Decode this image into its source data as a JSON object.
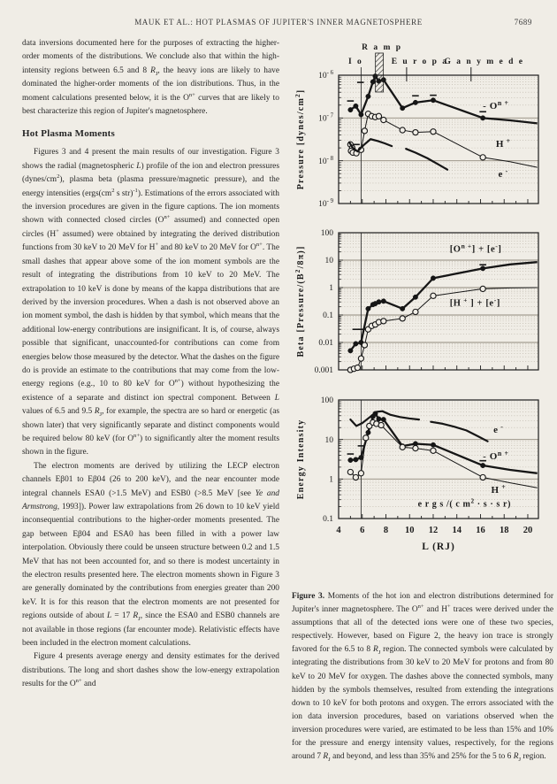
{
  "header": {
    "title": "MAUK ET AL.: HOT PLASMAS OF JUPITER'S INNER MAGNETOSPHERE",
    "page_number": "7689"
  },
  "article": {
    "para_continuation": "data inversions documented here for the purposes of extracting the higher-order moments of the distributions. We conclude also that within the high-intensity regions between 6.5 and 8 //R//_{J}, the heavy ions are likely to have dominated the higher-order moments of the ion distributions. Thus, in the moment calculations presented below, it is the O^{n+} curves that are likely to best characterize this region of Jupiter's magnetosphere.",
    "section_heading": "Hot Plasma Moments",
    "para_moments": "Figures 3 and 4 present the main results of our investigation. Figure 3 shows the radial (magnetospheric //L//) profile of the ion and electron pressures (dynes/cm^{2}), plasma beta (plasma pressure/magnetic pressure), and the energy intensities (ergs(cm^{2} s str)^{-1}). Estimations of the errors associated with the inversion procedures are given in the figure captions. The ion moments shown with connected closed circles (O^{n+} assumed) and connected open circles (H^{+} assumed) were obtained by integrating the derived distribution functions from 30 keV to 20 MeV for H^{+} and 80 keV to 20 MeV for O^{n+}. The small dashes that appear above some of the ion moment symbols are the result of integrating the distributions from 10 keV to 20 MeV.  The extrapolation to 10 keV is done by means of the kappa distributions that are derived by the inversion procedures. When a dash is not observed above an ion moment symbol, the dash is hidden by that symbol, which means that the additional low-energy contributions are insignificant. It is, of course, always possible that significant, unaccounted-for contributions can come from energies below those measured by the detector. What the dashes on the figure do is provide an estimate to the contributions that may come from the low-energy regions (e.g., 10 to 80 keV for O^{n+}) without hypothesizing the existence of a separate and distinct ion spectral component. Between //L// values of 6.5 and 9.5 //R//_{J}, for example, the spectra are so hard or energetic (as shown later) that very significantly separate and distinct components would be required below 80 keV (for O^{n+}) to significantly alter the moment results shown in the figure.",
    "para_electrons": "The electron moments are derived by utilizing the LECP electron channels Eβ01 to Eβ04 (26 to 200 keV), and the near encounter mode integral channels ESA0 (>1.5 MeV) and ESB0 (>8.5 MeV [see //Ye and Armstrong//, 1993]). Power law extrapolations from 26 down to 10 keV yield inconsequential contributions to the higher-order moments presented. The gap between Eβ04 and ESA0 has been filled in with a power law interpolation. Obviously there could be unseen structure between 0.2 and 1.5 MeV that has not been accounted for, and so there is modest uncertainty in the electron results presented here. The electron moments shown in Figure 3 are generally dominated by the contributions from energies greater than 200 keV. It is for this reason that the electron moments are not presented for regions outside of about //L// = 17 //R//_{J}, since the ESA0 and ESB0 channels are not available in those regions (far encounter mode). Relativistic effects have been included in the electron moment calculations.",
    "para_figure4": "Figure 4 presents average energy and density estimates for the derived distributions. The long and short dashes show the low-energy extrapolation results for the O^{n+} and"
  },
  "figure": {
    "caption_label": "Figure 3.",
    "caption_text": "Moments of the hot ion and electron distributions determined for Jupiter's inner magnetosphere. The O^{n+} and H^{+} traces were derived under the assumptions that all of the detected ions were one of these two species, respectively. However, based on Figure 2, the heavy ion trace is strongly favored for the 6.5 to 8 //R//_{J} region. The connected symbols were calculated by integrating the distributions from 30 keV to 20 MeV for protons and from 80 keV to 20 MeV for oxygen. The dashes above the connected symbols, many hidden by the symbols themselves, resulted from extending the integrations down to 10 keV for both protons and oxygen. The errors associated with the ion data inversion procedures, based on variations observed when the inversion procedures were varied, are estimated to be less than 15% and 10% for the pressure and energy intensity values, respectively, for the regions around 7 //R//_{J} and beyond, and less than 35% and 25% for the 5 to 6 //R//_{J} region."
  },
  "chart_data": [
    {
      "type": "line",
      "id": "pressure",
      "ylabel": "Pressure   [dynes/cm^{2}]",
      "x_range": [
        4,
        20.9
      ],
      "io_line_x": 5.9,
      "yticks": [
        {
          "v": 1e-06,
          "label": "10^{- 6}"
        },
        {
          "v": 1e-07,
          "label": "10^{- 7}"
        },
        {
          "v": 1e-08,
          "label": "10^{- 8}"
        },
        {
          "v": 1e-09,
          "label": "10^{- 9}"
        }
      ],
      "top_markers": [
        {
          "type": "line",
          "label": "I o",
          "x": 5.9
        },
        {
          "type": "hatch",
          "label": "R a m p",
          "x": 7.45
        },
        {
          "type": "tick",
          "label": "E u r o p a",
          "x": 9.75
        },
        {
          "type": "tick",
          "label": "G a n y m e d e",
          "x": 15.2
        }
      ],
      "series": [
        {
          "id": "o-nplus",
          "name": "O^{n+} (oxygen assumed)",
          "marker": "filled",
          "width": 2.3,
          "x": [
            5.0,
            5.45,
            5.9,
            6.5,
            6.9,
            7.1,
            7.4,
            7.8,
            9.4,
            10.5,
            12.0,
            16.2
          ],
          "y": [
            1.55e-07,
            1.9e-07,
            1.2e-07,
            3.2e-07,
            7e-07,
            9.5e-07,
            7.3e-07,
            7.8e-07,
            1.7e-07,
            2.3e-07,
            2.6e-07,
            1e-07
          ],
          "ext_x": [
            16.2,
            18.5,
            20.8
          ],
          "ext_y": [
            1e-07,
            8.8e-08,
            7.5e-08
          ],
          "dashes": [
            [
              5.0,
              2.5e-07
            ],
            [
              5.85,
              6.8e-07
            ],
            [
              10.5,
              3.3e-07
            ],
            [
              12.0,
              3.4e-07
            ],
            [
              16.2,
              1.4e-07
            ]
          ]
        },
        {
          "id": "h-plus",
          "name": "H^{+} (protons assumed)",
          "marker": "open",
          "width": 1.0,
          "x": [
            5.0,
            5.15,
            5.05,
            5.2,
            5.5,
            5.9,
            6.2,
            6.5,
            6.8,
            7.1,
            7.4,
            7.8,
            9.4,
            10.5,
            12.0,
            16.2
          ],
          "y": [
            2.4e-08,
            2e-08,
            1.7e-08,
            1.55e-08,
            1.5e-08,
            1.8e-08,
            5e-08,
            1.25e-07,
            1.1e-07,
            1.05e-07,
            1.1e-07,
            9e-08,
            5.2e-08,
            4.6e-08,
            4.8e-08,
            1.2e-08
          ],
          "ext_x": [
            16.2,
            18.5,
            20.8
          ],
          "ext_y": [
            1.2e-08,
            9.5e-09,
            7e-09
          ],
          "dashes": [
            [
              5.5,
              2.4e-08
            ]
          ]
        },
        {
          "id": "electron-inner",
          "name": "e^{-} (inner segment)",
          "marker": "none",
          "width": 2.2,
          "x": [
            4.9,
            5.2,
            5.6,
            6.1,
            6.7,
            7.3,
            7.9,
            8.5
          ],
          "y": [
            2.7e-08,
            2e-08,
            1.65e-08,
            2.3e-08,
            3.2e-08,
            2.9e-08,
            2.55e-08,
            2.2e-08
          ]
        },
        {
          "id": "electron-outer",
          "name": "e^{-} (outer segment)",
          "marker": "none",
          "width": 2.2,
          "x": [
            9.7,
            10.5,
            11.5,
            12.5,
            13.2
          ],
          "y": [
            1.9e-08,
            1.55e-08,
            1.15e-08,
            8e-09,
            6.2e-09
          ]
        }
      ],
      "labels": [
        {
          "text": "-  O^{n +}",
          "x": 16.2,
          "y": 1.65e-07,
          "size": 11
        },
        {
          "text": "H^{ +}",
          "x": 17.3,
          "y": 2.1e-08,
          "size": 11
        },
        {
          "text": "e^{ -}",
          "x": 17.5,
          "y": 4.2e-09,
          "size": 11
        }
      ]
    },
    {
      "type": "line",
      "id": "beta",
      "ylabel": "Beta   [Pressure/(B^{2}/8π)]",
      "x_range": [
        4,
        20.9
      ],
      "io_line_x": 5.9,
      "yticks": [
        {
          "v": 100,
          "label": "100"
        },
        {
          "v": 10,
          "label": "10"
        },
        {
          "v": 1,
          "label": "1"
        },
        {
          "v": 0.1,
          "label": "0.1"
        },
        {
          "v": 0.01,
          "label": "0.01"
        },
        {
          "v": 0.001,
          "label": "0.001"
        }
      ],
      "series": [
        {
          "id": "o-nplus-e",
          "name": "[O^{n+}] + [e^{-}]",
          "marker": "filled",
          "width": 2.3,
          "x": [
            5.0,
            5.45,
            5.9,
            6.5,
            6.9,
            7.1,
            7.4,
            7.8,
            9.4,
            10.5,
            12.0,
            16.2
          ],
          "y": [
            0.005,
            0.009,
            0.01,
            0.17,
            0.24,
            0.26,
            0.3,
            0.32,
            0.17,
            0.45,
            2.2,
            5.0
          ],
          "ext_x": [
            16.2,
            18.5,
            20.8
          ],
          "ext_y": [
            5.0,
            7.0,
            8.5
          ],
          "dashes": [
            [
              5.45,
              0.03
            ],
            [
              5.95,
              0.03
            ],
            [
              16.2,
              6.8
            ]
          ]
        },
        {
          "id": "h-plus-e",
          "name": "[H^{+}] + [e^{-}]",
          "marker": "open",
          "width": 1.0,
          "x": [
            5.0,
            5.3,
            5.6,
            5.9,
            6.2,
            6.5,
            6.8,
            7.1,
            7.4,
            7.8,
            9.4,
            10.5,
            12.0,
            16.2
          ],
          "y": [
            0.001,
            0.0011,
            0.0012,
            0.0026,
            0.008,
            0.03,
            0.04,
            0.045,
            0.055,
            0.06,
            0.075,
            0.13,
            0.5,
            0.9
          ],
          "ext_x": [
            16.2,
            18.5,
            20.8
          ],
          "ext_y": [
            0.9,
            0.97,
            1.0
          ]
        }
      ],
      "labels": [
        {
          "text": "[O^{n +}]  +  [e^{-}]",
          "x": 13.4,
          "y": 20,
          "size": 10.5
        },
        {
          "text": "[H^{ +}  ]  +  [e^{-}]",
          "x": 13.4,
          "y": 0.22,
          "size": 10.5
        }
      ]
    },
    {
      "type": "line",
      "id": "energy-intensity",
      "ylabel": "Energy    Intensity",
      "x_range": [
        4,
        20.9
      ],
      "io_line_x": 5.9,
      "xlabel": "L  (RJ)",
      "x_ticks": [
        4,
        6,
        8,
        10,
        12,
        14,
        16,
        18,
        20
      ],
      "yticks": [
        {
          "v": 100,
          "label": "100"
        },
        {
          "v": 10,
          "label": "10"
        },
        {
          "v": 1,
          "label": "1"
        },
        {
          "v": 0.1,
          "label": "0.1"
        }
      ],
      "series": [
        {
          "id": "electron-inner",
          "name": "e^{-} (inner segment)",
          "marker": "none",
          "width": 2.2,
          "x": [
            5.0,
            5.5,
            6.0,
            6.6,
            7.2,
            7.7,
            8.4,
            9.2,
            10.0,
            10.8
          ],
          "y": [
            32,
            22,
            26,
            36,
            50,
            52,
            42,
            37,
            34,
            32
          ]
        },
        {
          "id": "electron-outer",
          "name": "e^{-} (outer segment)",
          "marker": "none",
          "width": 2.2,
          "x": [
            11.8,
            12.8,
            13.8,
            14.8,
            15.8,
            16.6
          ],
          "y": [
            28,
            25,
            21,
            17,
            12,
            9
          ]
        },
        {
          "id": "o-nplus",
          "name": "O^{n+}",
          "marker": "filled",
          "width": 2.3,
          "x": [
            5.0,
            5.45,
            5.9,
            6.5,
            6.9,
            7.1,
            7.4,
            7.8,
            9.4,
            10.5,
            12.0,
            16.2
          ],
          "y": [
            3.0,
            3.1,
            3.5,
            15,
            38,
            45,
            33,
            32,
            6.8,
            7.8,
            7.3,
            2.2
          ],
          "ext_x": [
            16.2,
            18.5,
            20.8
          ],
          "ext_y": [
            2.2,
            1.7,
            1.4
          ],
          "dashes": [
            [
              5.0,
              4.3
            ],
            [
              5.9,
              6.9
            ],
            [
              16.2,
              2.9
            ]
          ]
        },
        {
          "id": "h-plus",
          "name": "H^{+}",
          "marker": "open",
          "width": 1.0,
          "x": [
            5.0,
            5.45,
            5.9,
            6.3,
            6.6,
            6.9,
            7.2,
            7.6,
            9.4,
            10.5,
            12.0,
            16.2
          ],
          "y": [
            1.5,
            1.1,
            1.4,
            11,
            22,
            27,
            25,
            23,
            6.4,
            6.0,
            5.2,
            1.1
          ],
          "ext_x": [
            16.2,
            18.5,
            20.8
          ],
          "ext_y": [
            1.1,
            0.8,
            0.6
          ]
        }
      ],
      "labels": [
        {
          "text": "e^{ -}",
          "x": 17.1,
          "y": 15,
          "size": 11
        },
        {
          "text": "-  O^{n +}",
          "x": 16.2,
          "y": 3.2,
          "size": 11
        },
        {
          "text": "H^{ +}",
          "x": 16.9,
          "y": 0.45,
          "size": 11
        },
        {
          "text": "e r g s /( c m^{2}  ·  s  ·  s r)",
          "x": 10.7,
          "y": 0.2,
          "size": 10
        }
      ]
    }
  ]
}
